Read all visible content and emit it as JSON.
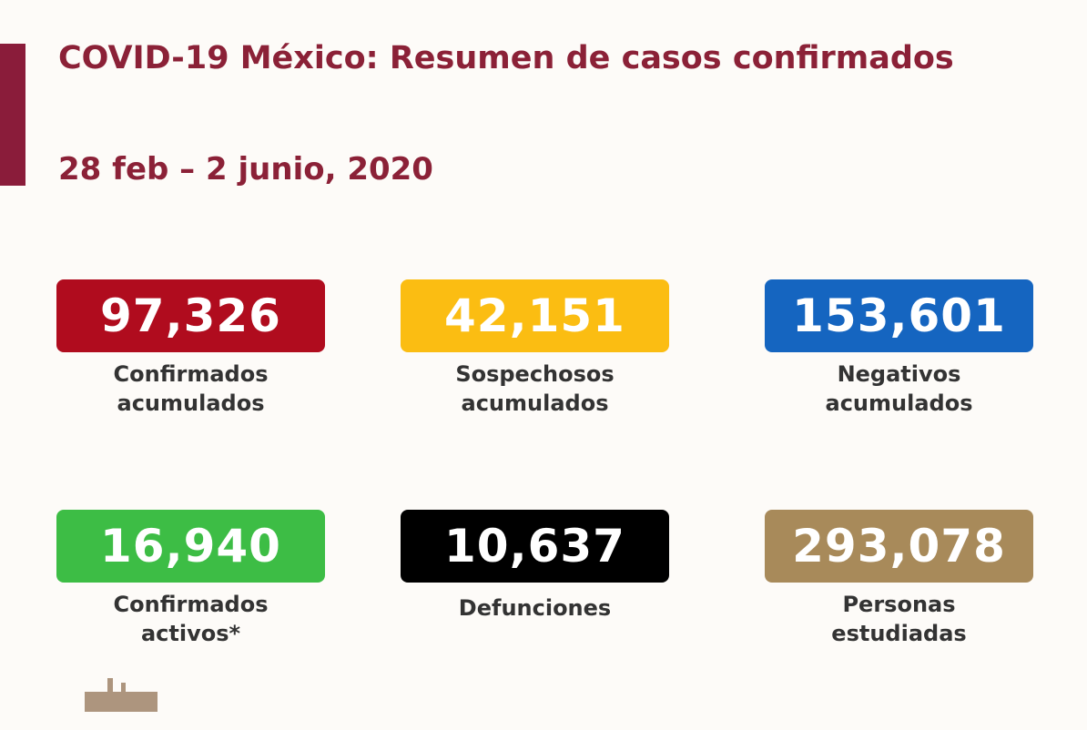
{
  "header": {
    "title": "COVID-19 México: Resumen de casos confirmados",
    "subtitle": "28 feb – 2 junio, 2020"
  },
  "cards": [
    {
      "value": "97,326",
      "label_lines": [
        "Confirmados",
        "acumulados"
      ],
      "color": "#b00c1e"
    },
    {
      "value": "42,151",
      "label_lines": [
        "Sospechosos",
        "acumulados"
      ],
      "color": "#fbbd12"
    },
    {
      "value": "153,601",
      "label_lines": [
        "Negativos",
        "acumulados"
      ],
      "color": "#1565c0"
    },
    {
      "value": "16,940",
      "label_lines": [
        "Confirmados",
        "activos*"
      ],
      "color": "#3dbd45"
    },
    {
      "value": "10,637",
      "label_lines": [
        "Defunciones"
      ],
      "color": "#000000"
    },
    {
      "value": "293,078",
      "label_lines": [
        "Personas",
        "estudiadas"
      ],
      "color": "#a88a5a"
    }
  ]
}
